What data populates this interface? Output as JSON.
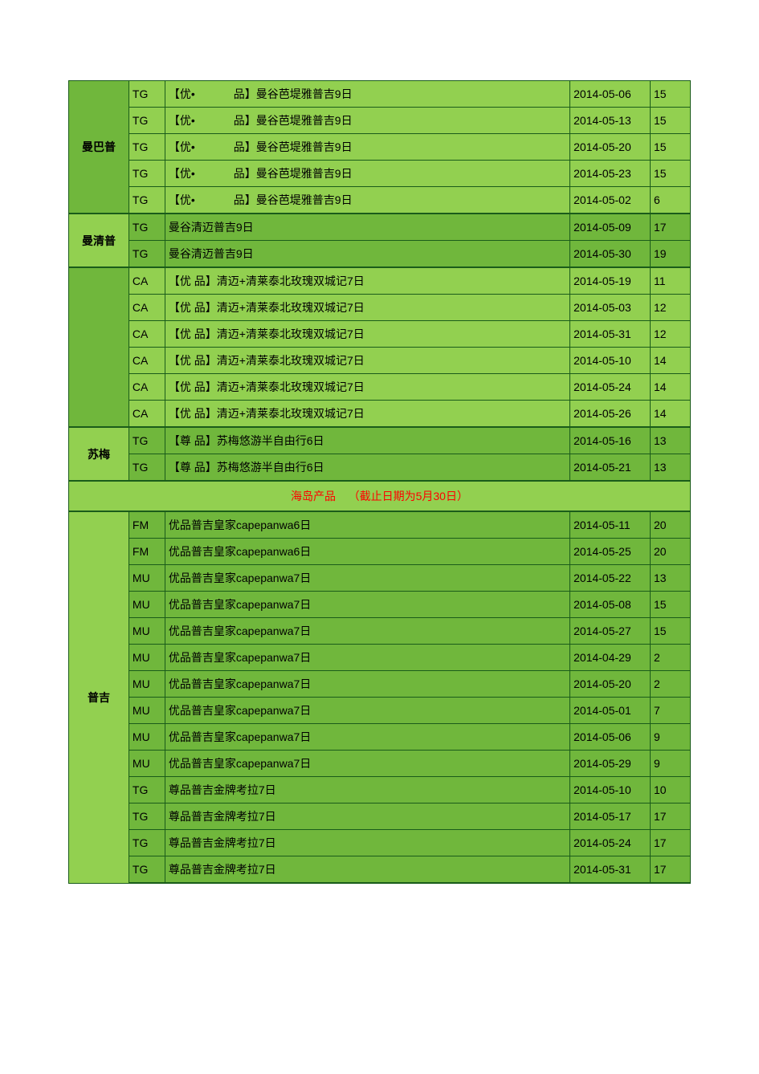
{
  "colors": {
    "bg_darker": "#70b73c",
    "bg_lighter": "#92d050",
    "border": "#1a5c1a",
    "header_text": "#ff0000",
    "cell_text": "#000000"
  },
  "column_widths": {
    "category": 75,
    "code": 45,
    "product": 505,
    "date": 100,
    "num": 50
  },
  "groups": [
    {
      "category": "曼巴普",
      "cat_bg": "g1",
      "row_bg": "g2",
      "rows": [
        {
          "code": "TG",
          "product_prefix": "【优•",
          "product_suffix": "品】曼谷芭堤雅普吉9日",
          "date": "2014-05-06",
          "num": "15"
        },
        {
          "code": "TG",
          "product_prefix": "【优•",
          "product_suffix": "品】曼谷芭堤雅普吉9日",
          "date": "2014-05-13",
          "num": "15"
        },
        {
          "code": "TG",
          "product_prefix": "【优•",
          "product_suffix": "品】曼谷芭堤雅普吉9日",
          "date": "2014-05-20",
          "num": "15"
        },
        {
          "code": "TG",
          "product_prefix": "【优•",
          "product_suffix": "品】曼谷芭堤雅普吉9日",
          "date": "2014-05-23",
          "num": "15"
        },
        {
          "code": "TG",
          "product_prefix": "【优•",
          "product_suffix": "品】曼谷芭堤雅普吉9日",
          "date": "2014-05-02",
          "num": "6"
        }
      ]
    },
    {
      "category": "曼清普",
      "cat_bg": "g2",
      "row_bg": "g1",
      "rows": [
        {
          "code": "TG",
          "product": "曼谷清迈普吉9日",
          "date": "2014-05-09",
          "num": "17"
        },
        {
          "code": "TG",
          "product": "曼谷清迈普吉9日",
          "date": "2014-05-30",
          "num": "19"
        }
      ]
    },
    {
      "category": "",
      "cat_bg": "g1",
      "row_bg": "g2",
      "rows": [
        {
          "code": "CA",
          "product": "【优 品】清迈+清莱泰北玫瑰双城记7日",
          "date": "2014-05-19",
          "num": "11"
        },
        {
          "code": "CA",
          "product": "【优 品】清迈+清莱泰北玫瑰双城记7日",
          "date": "2014-05-03",
          "num": "12"
        },
        {
          "code": "CA",
          "product": "【优 品】清迈+清莱泰北玫瑰双城记7日",
          "date": "2014-05-31",
          "num": "12"
        },
        {
          "code": "CA",
          "product": "【优 品】清迈+清莱泰北玫瑰双城记7日",
          "date": "2014-05-10",
          "num": "14"
        },
        {
          "code": "CA",
          "product": "【优 品】清迈+清莱泰北玫瑰双城记7日",
          "date": "2014-05-24",
          "num": "14"
        },
        {
          "code": "CA",
          "product": "【优 品】清迈+清莱泰北玫瑰双城记7日",
          "date": "2014-05-26",
          "num": "14"
        }
      ]
    },
    {
      "category": "苏梅",
      "cat_bg": "g2",
      "row_bg": "g1",
      "rows": [
        {
          "code": "TG",
          "product": "【尊 品】苏梅悠游半自由行6日",
          "date": "2014-05-16",
          "num": "13"
        },
        {
          "code": "TG",
          "product": "【尊 品】苏梅悠游半自由行6日",
          "date": "2014-05-21",
          "num": "13"
        }
      ]
    }
  ],
  "section_header": {
    "text_left": "海岛产品",
    "text_right": "（截止日期为5月30日）"
  },
  "groups2": [
    {
      "category": "普吉",
      "cat_bg": "g2",
      "row_bg": "g1",
      "rows": [
        {
          "code": "FM",
          "product": "优品普吉皇家capepanwa6日",
          "date": "2014-05-11",
          "num": "20"
        },
        {
          "code": "FM",
          "product": "优品普吉皇家capepanwa6日",
          "date": "2014-05-25",
          "num": "20"
        },
        {
          "code": "MU",
          "product": "优品普吉皇家capepanwa7日",
          "date": "2014-05-22",
          "num": "13"
        },
        {
          "code": "MU",
          "product": "优品普吉皇家capepanwa7日",
          "date": "2014-05-08",
          "num": "15"
        },
        {
          "code": "MU",
          "product": "优品普吉皇家capepanwa7日",
          "date": "2014-05-27",
          "num": "15"
        },
        {
          "code": "MU",
          "product": "优品普吉皇家capepanwa7日",
          "date": "2014-04-29",
          "num": "2"
        },
        {
          "code": "MU",
          "product": "优品普吉皇家capepanwa7日",
          "date": "2014-05-20",
          "num": "2"
        },
        {
          "code": "MU",
          "product": "优品普吉皇家capepanwa7日",
          "date": "2014-05-01",
          "num": "7"
        },
        {
          "code": "MU",
          "product": "优品普吉皇家capepanwa7日",
          "date": "2014-05-06",
          "num": "9"
        },
        {
          "code": "MU",
          "product": "优品普吉皇家capepanwa7日",
          "date": "2014-05-29",
          "num": "9"
        },
        {
          "code": "TG",
          "product": "尊品普吉金牌考拉7日",
          "date": "2014-05-10",
          "num": "10"
        },
        {
          "code": "TG",
          "product": "尊品普吉金牌考拉7日",
          "date": "2014-05-17",
          "num": "17"
        },
        {
          "code": "TG",
          "product": "尊品普吉金牌考拉7日",
          "date": "2014-05-24",
          "num": "17"
        },
        {
          "code": "TG",
          "product": "尊品普吉金牌考拉7日",
          "date": "2014-05-31",
          "num": "17"
        }
      ]
    }
  ]
}
